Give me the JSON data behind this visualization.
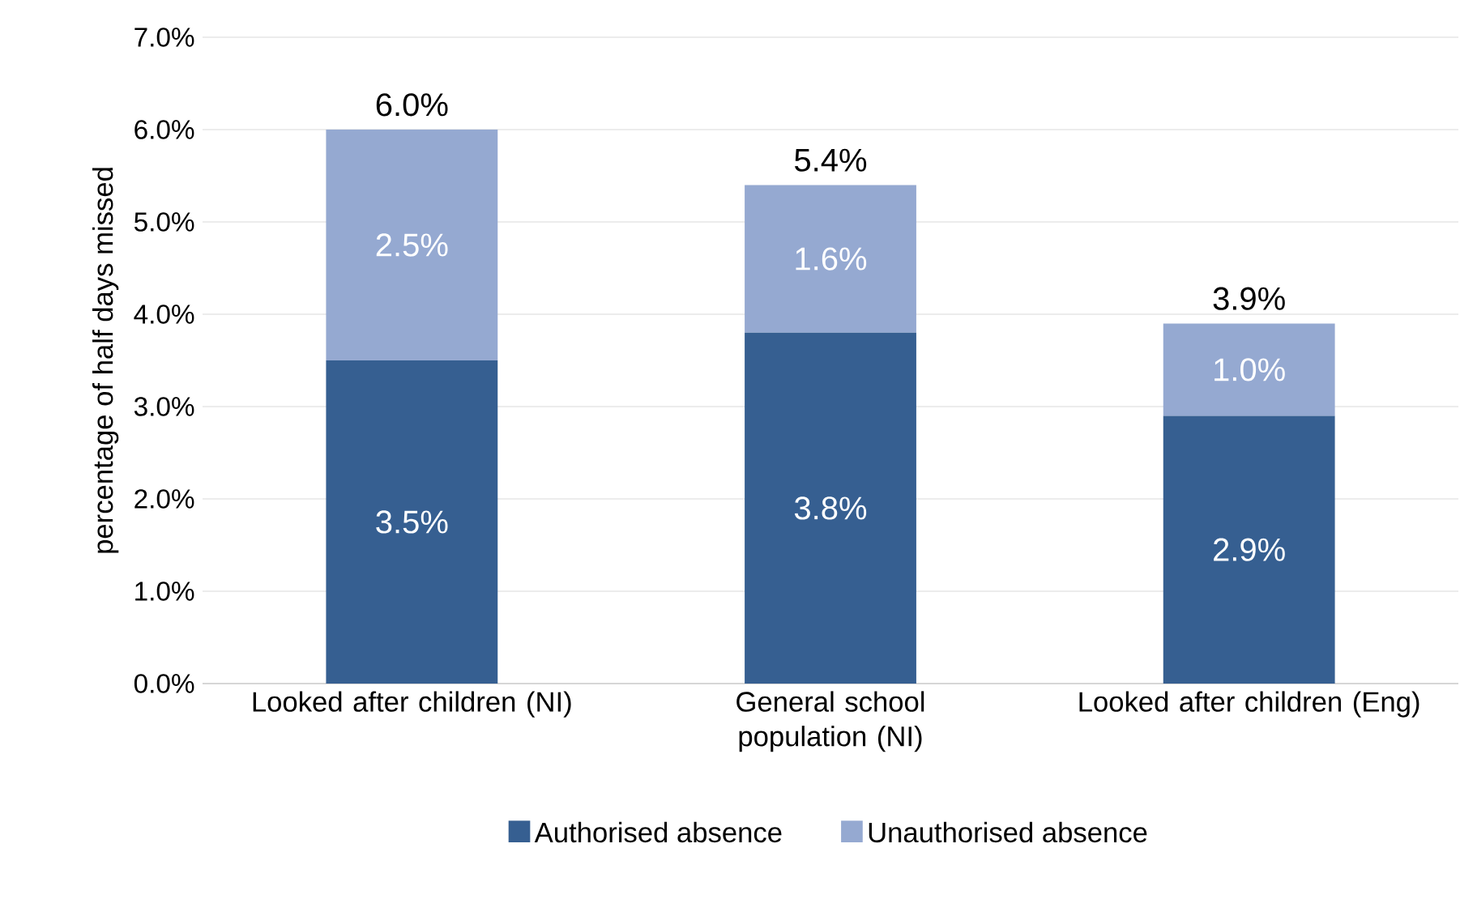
{
  "chart_data": {
    "type": "bar",
    "stacked": true,
    "ylabel": "percentage of half days missed",
    "categories": [
      "Looked after children (NI)",
      "General school population (NI)",
      "Looked after children (Eng)"
    ],
    "series": [
      {
        "name": "Authorised absence",
        "color": "#365f91",
        "values": [
          3.5,
          3.8,
          2.9
        ],
        "value_labels": [
          "3.5%",
          "3.8%",
          "2.9%"
        ]
      },
      {
        "name": "Unauthorised absence",
        "color": "#95a9d1",
        "values": [
          2.5,
          1.6,
          1.0
        ],
        "value_labels": [
          "2.5%",
          "1.6%",
          "1.0%"
        ]
      }
    ],
    "totals": [
      "6.0%",
      "5.4%",
      "3.9%"
    ],
    "ylim": [
      0,
      7
    ],
    "yticks": [
      {
        "value": 0,
        "label": "0.0%"
      },
      {
        "value": 1,
        "label": "1.0%"
      },
      {
        "value": 2,
        "label": "2.0%"
      },
      {
        "value": 3,
        "label": "3.0%"
      },
      {
        "value": 4,
        "label": "4.0%"
      },
      {
        "value": 5,
        "label": "5.0%"
      },
      {
        "value": 6,
        "label": "6.0%"
      },
      {
        "value": 7,
        "label": "7.0%"
      }
    ],
    "grid": "y",
    "legend": "bottom"
  }
}
